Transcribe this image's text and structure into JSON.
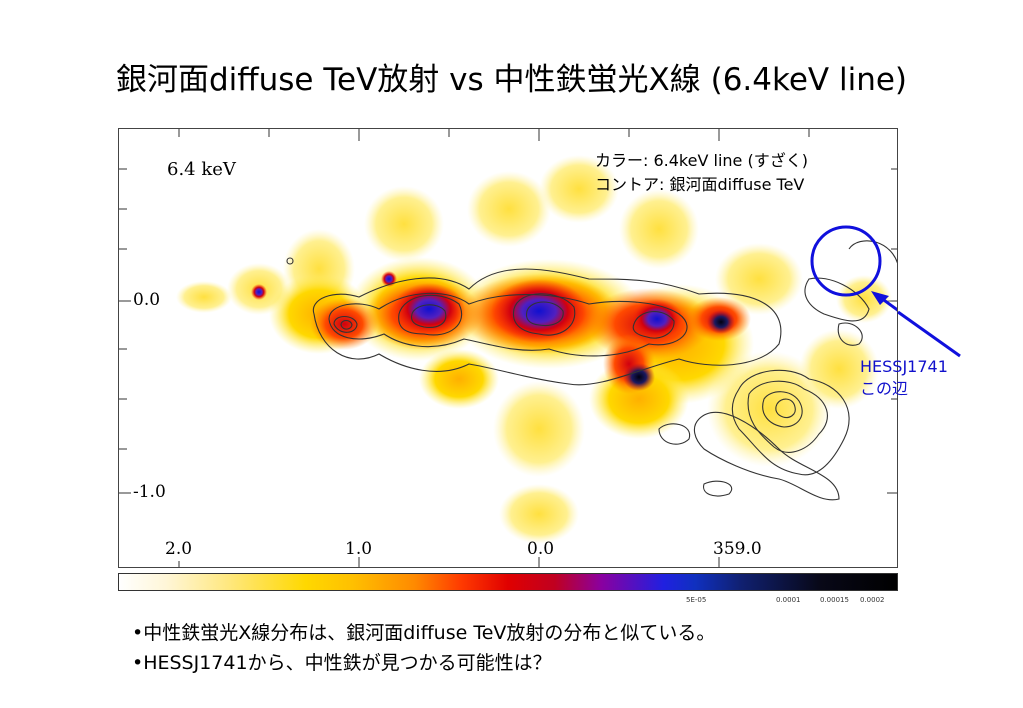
{
  "slide": {
    "title": "銀河面diffuse TeV放射 vs 中性鉄蛍光X線 (6.4keV line)"
  },
  "figure": {
    "energy_label": "6.4 keV",
    "legend_line1": "カラー: 6.4keV line (すざく)",
    "legend_line2": "コントア: 銀河面diffuse TeV",
    "y_ticks": [
      "0.0",
      "-1.0"
    ],
    "x_ticks": [
      "2.0",
      "1.0",
      "0.0",
      "359.0"
    ],
    "colorbar_labels": [
      "5E-05",
      "0.0001",
      "0.00015",
      "0.0002"
    ]
  },
  "annotation": {
    "line1": "HESSJ1741",
    "line2": "この辺",
    "color": "#1010cc"
  },
  "bullets": {
    "item1": "•中性鉄蛍光X線分布は、銀河面diffuse TeV放射の分布と似ている。",
    "item2": "•HESSJ1741から、中性鉄が見つかる可能性は？"
  }
}
